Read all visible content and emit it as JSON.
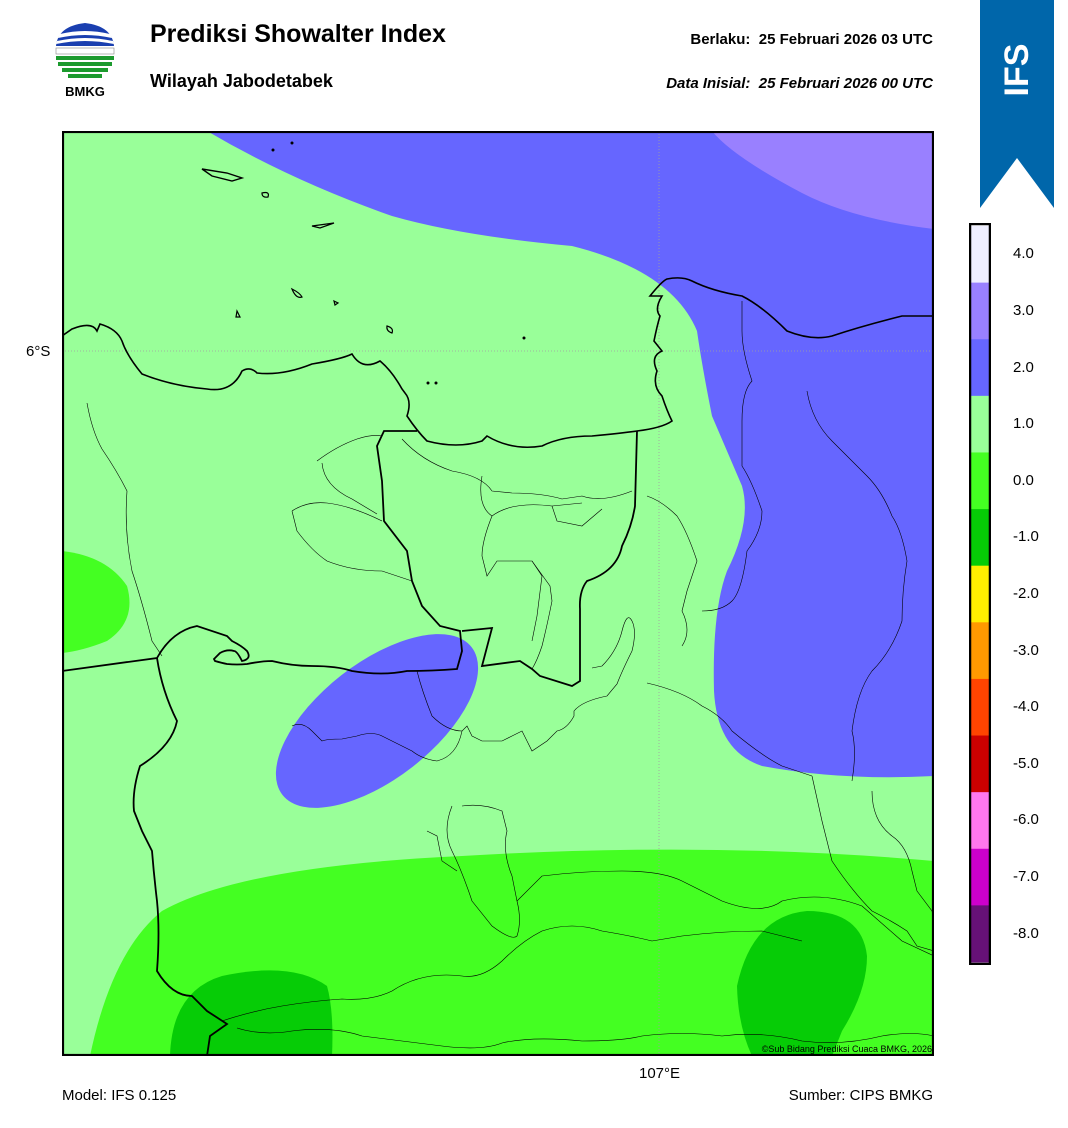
{
  "header": {
    "title": "Prediksi Showalter Index",
    "subtitle": "Wilayah Jabodetabek",
    "valid_label": "Berlaku:",
    "valid_time": "25 Februari 2026 03 UTC",
    "init_label": "Data Inisial:",
    "init_time": "25 Februari 2026 00 UTC"
  },
  "logo": {
    "text": "BMKG",
    "icon": "bmkg-logo"
  },
  "ribbon": {
    "text": "IFS",
    "color": "#0066aa"
  },
  "map": {
    "lat_label": "6°S",
    "lon_label": "107°E",
    "copyright": "©Sub Bidang Prediksi Cuaca BMKG, 2026"
  },
  "colorbar": {
    "levels": [
      "4.0",
      "3.0",
      "2.0",
      "1.0",
      "0.0",
      "-1.0",
      "-2.0",
      "-3.0",
      "-4.0",
      "-5.0",
      "-6.0",
      "-7.0",
      "-8.0"
    ],
    "colors_top_to_bottom": [
      "#eeeeff",
      "#9980ff",
      "#6666ff",
      "#99ff99",
      "#44ff22",
      "#06cc06",
      "#ffee00",
      "#ff9900",
      "#ff4400",
      "#cc0000",
      "#ff77ee",
      "#cc00cc",
      "#661177"
    ]
  },
  "footer": {
    "model": "Model: IFS 0.125",
    "source": "Sumber: CIPS BMKG"
  }
}
